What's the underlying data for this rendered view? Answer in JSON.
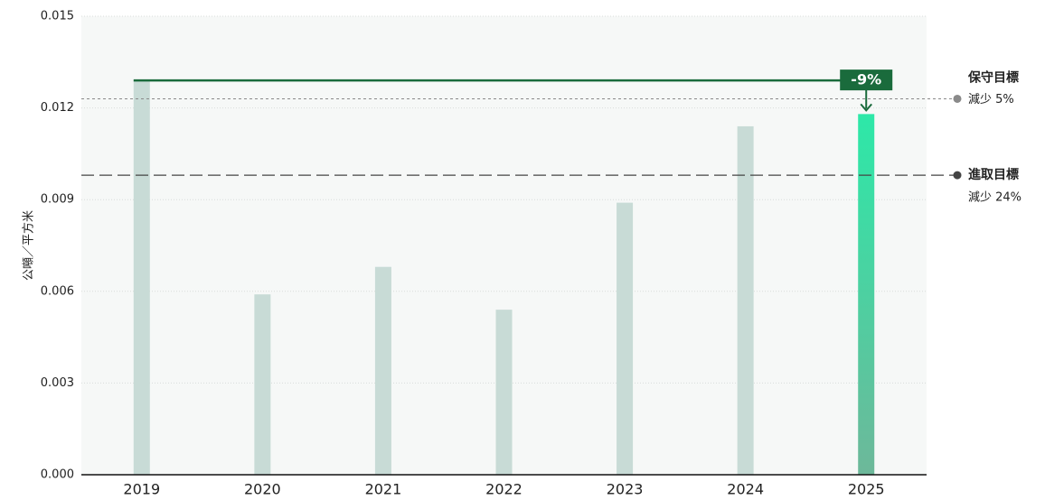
{
  "chart_data": {
    "type": "bar",
    "y_label": "公噸／平方米",
    "categories": [
      "2019",
      "2020",
      "2021",
      "2022",
      "2023",
      "2024",
      "2025"
    ],
    "values": [
      0.0129,
      0.0059,
      0.0068,
      0.0054,
      0.0089,
      0.0114,
      0.0118
    ],
    "colors": [
      "#c8dbd6",
      "#c8dbd6",
      "#c8dbd6",
      "#c8dbd6",
      "#c8dbd6",
      "#c8dbd6",
      "#2de8a8"
    ],
    "ylim": [
      0,
      0.015
    ],
    "yticks": [
      {
        "value": 0,
        "label": "0.000"
      },
      0.003,
      0.006,
      0.009,
      0.012,
      0.015
    ],
    "grid": true,
    "reference_lines": [
      {
        "name": "保守目標",
        "note": "減少 5%",
        "value": 0.0123,
        "color": "#8a8a8a",
        "style": "dotted"
      },
      {
        "name": "進取目標",
        "note": "減少 24%",
        "value": 0.0098,
        "color": "#444444",
        "style": "dashed"
      }
    ],
    "annotation": {
      "label": "-9%",
      "from": 0,
      "to": 6,
      "color": "#1a6b3c"
    }
  }
}
